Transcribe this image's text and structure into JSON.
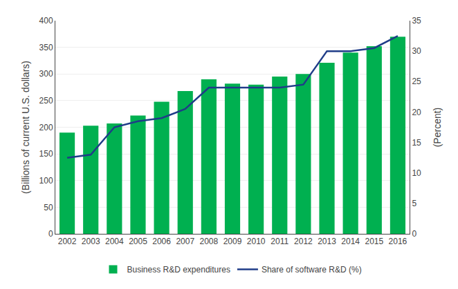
{
  "chart_data": {
    "type": "bar",
    "ylabel": "(Billions of current U.S. dollars)",
    "y2label": "(Percent)",
    "categories": [
      "2002",
      "2003",
      "2004",
      "2005",
      "2006",
      "2007",
      "2008",
      "2009",
      "2010",
      "2011",
      "2012",
      "2013",
      "2014",
      "2015",
      "2016"
    ],
    "series": [
      {
        "name": "Business R&D expenditures",
        "type": "bar",
        "color": "#00b050",
        "values": [
          190,
          203,
          207,
          222,
          248,
          268,
          290,
          282,
          280,
          295,
          300,
          321,
          340,
          352,
          370
        ]
      },
      {
        "name": "Share of software R&D (%)",
        "type": "line",
        "color": "#1f3c88",
        "axis": "y2",
        "values": [
          12.5,
          13.0,
          17.5,
          18.5,
          19.0,
          20.5,
          24.0,
          24.0,
          24.0,
          24.0,
          24.5,
          30.0,
          30.0,
          30.5,
          32.5
        ]
      }
    ],
    "ylim": [
      0,
      400
    ],
    "yticks": [
      0,
      50,
      100,
      150,
      200,
      250,
      300,
      350,
      400
    ],
    "y2lim": [
      0,
      35
    ],
    "y2ticks": [
      0,
      5,
      10,
      15,
      20,
      25,
      30,
      35
    ],
    "grid": true,
    "legend": "bottom"
  }
}
